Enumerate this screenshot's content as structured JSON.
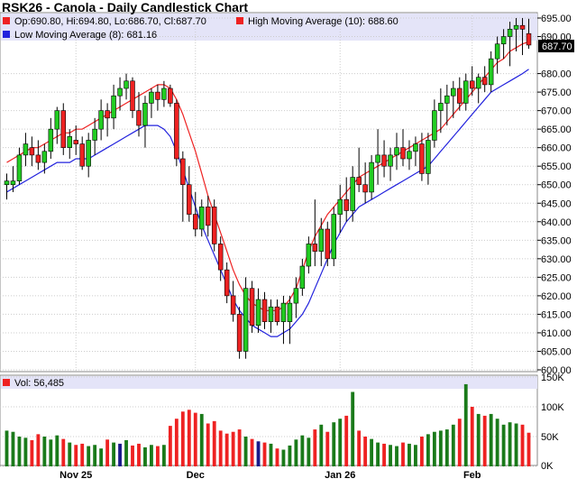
{
  "title": "RSK26 - Canola - Daily Candlestick Chart",
  "ohlc_legend": "Op:690.80, Hi:694.80, Lo:686.70, Cl:687.70",
  "high_ma_legend": "High Moving Average (10): 688.60",
  "low_ma_legend": "Low Moving Average (8): 681.16",
  "volume_legend": "Vol: 56,485",
  "last_price_label": "687.70",
  "colors": {
    "up": "#22cc22",
    "down": "#ee2222",
    "high_ma": "#ee2222",
    "low_ma": "#2222dd",
    "vol_up": "#1a7a1a",
    "vol_down": "#ee2222",
    "vol_neutral": "#1a1a8a",
    "legend_bg": "#e4e4f8"
  },
  "chart_data": {
    "type": "candlestick",
    "price_axis": {
      "min": 600,
      "max": 695,
      "ticks": [
        "695.00",
        "690.00",
        "680.00",
        "675.00",
        "670.00",
        "665.00",
        "660.00",
        "655.00",
        "650.00",
        "645.00",
        "640.00",
        "635.00",
        "630.00",
        "625.00",
        "620.00",
        "615.00",
        "610.00",
        "605.00",
        "600.00"
      ]
    },
    "volume_axis": {
      "min": 0,
      "max": 150000,
      "ticks": [
        "150K",
        "100K",
        "50K",
        "0K"
      ]
    },
    "x_labels": [
      {
        "label": "Nov 25",
        "index": 11
      },
      {
        "label": "Dec",
        "index": 30
      },
      {
        "label": "Jan 26",
        "index": 53
      },
      {
        "label": "Feb",
        "index": 74
      }
    ],
    "candles": [
      {
        "o": 650,
        "h": 653,
        "l": 646,
        "c": 651,
        "v": 60000
      },
      {
        "o": 650,
        "h": 655,
        "l": 648,
        "c": 651,
        "v": 58000
      },
      {
        "o": 651,
        "h": 660,
        "l": 650,
        "c": 658,
        "v": 50000
      },
      {
        "o": 658,
        "h": 664,
        "l": 655,
        "c": 661,
        "v": 48000
      },
      {
        "o": 660,
        "h": 663,
        "l": 655,
        "c": 658,
        "v": 44000
      },
      {
        "o": 658,
        "h": 662,
        "l": 654,
        "c": 656,
        "v": 54000
      },
      {
        "o": 656,
        "h": 661,
        "l": 653,
        "c": 659,
        "v": 50000
      },
      {
        "o": 659,
        "h": 668,
        "l": 657,
        "c": 665,
        "v": 45000
      },
      {
        "o": 665,
        "h": 671,
        "l": 661,
        "c": 670,
        "v": 52000
      },
      {
        "o": 670,
        "h": 672,
        "l": 658,
        "c": 660,
        "v": 46000
      },
      {
        "o": 660,
        "h": 665,
        "l": 657,
        "c": 663,
        "v": 40000
      },
      {
        "o": 662,
        "h": 666,
        "l": 658,
        "c": 661,
        "v": 36000
      },
      {
        "o": 661,
        "h": 663,
        "l": 654,
        "c": 655,
        "v": 38000
      },
      {
        "o": 655,
        "h": 664,
        "l": 652,
        "c": 662,
        "v": 34000
      },
      {
        "o": 662,
        "h": 668,
        "l": 658,
        "c": 665,
        "v": 36000
      },
      {
        "o": 665,
        "h": 673,
        "l": 662,
        "c": 670,
        "v": 30000
      },
      {
        "o": 670,
        "h": 672,
        "l": 663,
        "c": 668,
        "v": 45000
      },
      {
        "o": 668,
        "h": 677,
        "l": 665,
        "c": 674,
        "v": 40000
      },
      {
        "o": 674,
        "h": 679,
        "l": 670,
        "c": 676,
        "v": 38000
      },
      {
        "o": 676,
        "h": 680,
        "l": 673,
        "c": 678,
        "v": 44000
      },
      {
        "o": 678,
        "h": 679,
        "l": 668,
        "c": 670,
        "v": 35000
      },
      {
        "o": 670,
        "h": 675,
        "l": 663,
        "c": 666,
        "v": 38000
      },
      {
        "o": 666,
        "h": 674,
        "l": 660,
        "c": 672,
        "v": 32000
      },
      {
        "o": 672,
        "h": 676,
        "l": 668,
        "c": 675,
        "v": 36000
      },
      {
        "o": 675,
        "h": 677,
        "l": 670,
        "c": 673,
        "v": 34000
      },
      {
        "o": 673,
        "h": 678,
        "l": 671,
        "c": 676,
        "v": 36000
      },
      {
        "o": 676,
        "h": 677,
        "l": 671,
        "c": 672,
        "v": 68000
      },
      {
        "o": 672,
        "h": 673,
        "l": 655,
        "c": 657,
        "v": 80000
      },
      {
        "o": 657,
        "h": 659,
        "l": 640,
        "c": 650,
        "v": 92000
      },
      {
        "o": 650,
        "h": 655,
        "l": 640,
        "c": 642,
        "v": 95000
      },
      {
        "o": 642,
        "h": 648,
        "l": 636,
        "c": 638,
        "v": 90000
      },
      {
        "o": 638,
        "h": 646,
        "l": 636,
        "c": 644,
        "v": 88000
      },
      {
        "o": 644,
        "h": 647,
        "l": 636,
        "c": 639,
        "v": 72000
      },
      {
        "o": 644,
        "h": 646,
        "l": 632,
        "c": 634,
        "v": 76000
      },
      {
        "o": 634,
        "h": 636,
        "l": 624,
        "c": 627,
        "v": 60000
      },
      {
        "o": 627,
        "h": 629,
        "l": 618,
        "c": 620,
        "v": 55000
      },
      {
        "o": 620,
        "h": 624,
        "l": 613,
        "c": 615,
        "v": 58000
      },
      {
        "o": 615,
        "h": 617,
        "l": 603,
        "c": 605,
        "v": 62000
      },
      {
        "o": 605,
        "h": 625,
        "l": 603,
        "c": 622,
        "v": 50000
      },
      {
        "o": 622,
        "h": 624,
        "l": 610,
        "c": 612,
        "v": 46000
      },
      {
        "o": 612,
        "h": 622,
        "l": 610,
        "c": 619,
        "v": 42000
      },
      {
        "o": 619,
        "h": 621,
        "l": 611,
        "c": 613,
        "v": 40000
      },
      {
        "o": 613,
        "h": 619,
        "l": 610,
        "c": 617,
        "v": 38000
      },
      {
        "o": 617,
        "h": 619,
        "l": 612,
        "c": 613,
        "v": 30000
      },
      {
        "o": 613,
        "h": 620,
        "l": 607,
        "c": 618,
        "v": 28000
      },
      {
        "o": 613,
        "h": 620,
        "l": 607,
        "c": 618,
        "v": 35000
      },
      {
        "o": 618,
        "h": 625,
        "l": 614,
        "c": 622,
        "v": 45000
      },
      {
        "o": 622,
        "h": 630,
        "l": 620,
        "c": 628,
        "v": 52000
      },
      {
        "o": 628,
        "h": 636,
        "l": 626,
        "c": 634,
        "v": 48000
      },
      {
        "o": 634,
        "h": 646,
        "l": 628,
        "c": 632,
        "v": 62000
      },
      {
        "o": 632,
        "h": 641,
        "l": 628,
        "c": 638,
        "v": 70000
      },
      {
        "o": 638,
        "h": 640,
        "l": 628,
        "c": 630,
        "v": 58000
      },
      {
        "o": 630,
        "h": 644,
        "l": 628,
        "c": 642,
        "v": 74000
      },
      {
        "o": 642,
        "h": 650,
        "l": 637,
        "c": 646,
        "v": 80000
      },
      {
        "o": 646,
        "h": 652,
        "l": 640,
        "c": 643,
        "v": 85000
      },
      {
        "o": 643,
        "h": 655,
        "l": 640,
        "c": 652,
        "v": 125000
      },
      {
        "o": 652,
        "h": 660,
        "l": 648,
        "c": 650,
        "v": 60000
      },
      {
        "o": 650,
        "h": 656,
        "l": 645,
        "c": 648,
        "v": 50000
      },
      {
        "o": 648,
        "h": 658,
        "l": 646,
        "c": 656,
        "v": 46000
      },
      {
        "o": 656,
        "h": 665,
        "l": 650,
        "c": 658,
        "v": 40000
      },
      {
        "o": 658,
        "h": 662,
        "l": 652,
        "c": 655,
        "v": 38000
      },
      {
        "o": 655,
        "h": 660,
        "l": 651,
        "c": 658,
        "v": 36000
      },
      {
        "o": 658,
        "h": 664,
        "l": 654,
        "c": 660,
        "v": 34000
      },
      {
        "o": 660,
        "h": 665,
        "l": 655,
        "c": 657,
        "v": 40000
      },
      {
        "o": 657,
        "h": 662,
        "l": 654,
        "c": 659,
        "v": 38000
      },
      {
        "o": 659,
        "h": 663,
        "l": 655,
        "c": 661,
        "v": 36000
      },
      {
        "o": 661,
        "h": 664,
        "l": 651,
        "c": 653,
        "v": 50000
      },
      {
        "o": 653,
        "h": 664,
        "l": 650,
        "c": 662,
        "v": 54000
      },
      {
        "o": 662,
        "h": 673,
        "l": 660,
        "c": 670,
        "v": 58000
      },
      {
        "o": 670,
        "h": 676,
        "l": 664,
        "c": 672,
        "v": 60000
      },
      {
        "o": 672,
        "h": 677,
        "l": 666,
        "c": 674,
        "v": 62000
      },
      {
        "o": 674,
        "h": 678,
        "l": 668,
        "c": 676,
        "v": 70000
      },
      {
        "o": 676,
        "h": 679,
        "l": 670,
        "c": 672,
        "v": 80000
      },
      {
        "o": 672,
        "h": 680,
        "l": 670,
        "c": 678,
        "v": 138000
      },
      {
        "o": 678,
        "h": 682,
        "l": 674,
        "c": 676,
        "v": 100000
      },
      {
        "o": 676,
        "h": 680,
        "l": 672,
        "c": 679,
        "v": 88000
      },
      {
        "o": 679,
        "h": 682,
        "l": 675,
        "c": 677,
        "v": 85000
      },
      {
        "o": 677,
        "h": 686,
        "l": 675,
        "c": 684,
        "v": 88000
      },
      {
        "o": 684,
        "h": 690,
        "l": 680,
        "c": 688,
        "v": 80000
      },
      {
        "o": 688,
        "h": 692,
        "l": 684,
        "c": 690,
        "v": 70000
      },
      {
        "o": 690,
        "h": 694,
        "l": 682,
        "c": 692,
        "v": 74000
      },
      {
        "o": 692,
        "h": 695,
        "l": 686,
        "c": 693,
        "v": 72000
      },
      {
        "o": 693,
        "h": 695,
        "l": 685,
        "c": 692,
        "v": 70000
      },
      {
        "o": 690.8,
        "h": 694.8,
        "l": 686.7,
        "c": 687.7,
        "v": 56485
      }
    ],
    "high_ma_10": [
      656,
      657,
      658,
      659,
      660,
      660,
      661,
      662,
      663,
      664,
      664,
      665,
      665,
      666,
      667,
      668,
      669,
      670,
      671,
      672,
      673,
      674,
      675,
      676,
      677,
      677,
      676,
      673,
      669,
      664,
      659,
      653,
      647,
      642,
      637,
      632,
      627,
      623,
      620,
      618,
      617,
      616,
      616,
      616,
      617,
      619,
      622,
      627,
      632,
      636,
      639,
      642,
      644,
      646,
      648,
      650,
      652,
      653,
      654,
      655,
      656,
      657,
      658,
      659,
      660,
      661,
      662,
      663,
      664,
      665,
      667,
      669,
      671,
      673,
      675,
      677,
      679,
      681,
      683,
      684,
      686,
      687,
      688,
      688.6
    ],
    "low_ma_8": [
      648,
      649,
      650,
      651,
      652,
      653,
      654,
      655,
      656,
      656,
      656,
      657,
      657,
      657,
      658,
      659,
      660,
      661,
      662,
      663,
      664,
      665,
      666,
      666,
      666,
      665,
      663,
      659,
      654,
      649,
      644,
      639,
      635,
      631,
      627,
      623,
      619,
      616,
      614,
      612,
      611,
      610,
      609,
      609,
      610,
      611,
      613,
      615,
      618,
      622,
      626,
      630,
      634,
      637,
      640,
      642,
      644,
      645,
      646,
      647,
      648,
      649,
      650,
      651,
      652,
      653,
      654,
      655,
      657,
      659,
      661,
      663,
      665,
      667,
      669,
      671,
      673,
      675,
      676,
      677,
      678,
      679,
      680,
      681.16
    ]
  }
}
